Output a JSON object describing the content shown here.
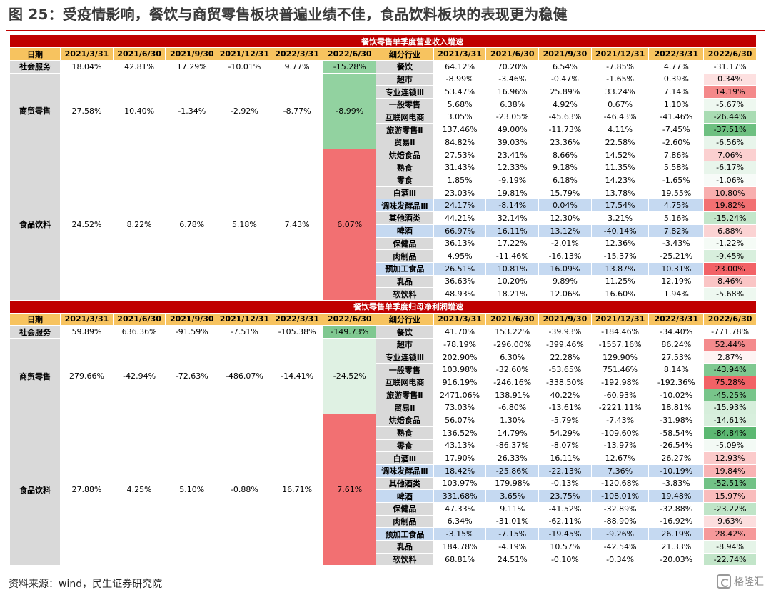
{
  "title": "图 25：受疫情影响，餐饮与商贸零售板块普遍业绩不佳，食品饮料板块的表现更为稳健",
  "source": "资料来源：wind，民生证券研究院",
  "watermark": "格隆汇",
  "colors": {
    "section_bg": "#c00000",
    "header_bg": "#f7c35f",
    "group_bg": "#d9d9d9",
    "highlight_blue": "#c5d9f1"
  },
  "tables": [
    {
      "section_title": "餐饮零售单季度营业收入增速",
      "left_headers": [
        "日期",
        "2021/3/31",
        "2021/6/30",
        "2021/9/30",
        "2021/12/31",
        "2022/3/31",
        "2022/6/30"
      ],
      "right_headers": [
        "细分行业",
        "2021/3/31",
        "2021/6/30",
        "2021/9/30",
        "2021/12/31",
        "2022/3/31",
        "2022/6/30"
      ],
      "groups": [
        {
          "name": "社会服务",
          "values": [
            "18.04%",
            "42.81%",
            "17.29%",
            "-10.01%",
            "9.77%",
            "-15.28%"
          ],
          "last_color": "#92d2a0",
          "rows": 1
        },
        {
          "name": "商贸零售",
          "values": [
            "27.58%",
            "10.40%",
            "-1.34%",
            "-2.92%",
            "-8.77%",
            "-8.99%"
          ],
          "last_color": "#92d2a0",
          "rows": 6
        },
        {
          "name": "食品饮料",
          "values": [
            "24.52%",
            "8.22%",
            "6.78%",
            "5.18%",
            "7.43%",
            "6.07%"
          ],
          "last_color": "#f27072",
          "rows": 12
        }
      ],
      "industries": [
        {
          "name": "餐饮",
          "values": [
            "64.12%",
            "70.20%",
            "6.54%",
            "-7.85%",
            "4.77%",
            "-31.17%"
          ],
          "color": "#ffffff",
          "blue": false
        },
        {
          "name": "超市",
          "values": [
            "-8.99%",
            "-3.46%",
            "-0.47%",
            "-1.65%",
            "0.39%",
            "0.34%"
          ],
          "color": "#fde0e0",
          "blue": false
        },
        {
          "name": "专业连锁Ⅲ",
          "values": [
            "53.47%",
            "16.96%",
            "25.89%",
            "33.24%",
            "7.14%",
            "14.19%"
          ],
          "color": "#f4898a",
          "blue": false
        },
        {
          "name": "一般零售",
          "values": [
            "5.68%",
            "6.38%",
            "4.92%",
            "0.67%",
            "1.10%",
            "-5.67%"
          ],
          "color": "#eef8f0",
          "blue": false
        },
        {
          "name": "互联网电商",
          "values": [
            "3.05%",
            "-23.05%",
            "-45.63%",
            "-46.43%",
            "-41.46%",
            "-26.44%"
          ],
          "color": "#a9dcb3",
          "blue": false
        },
        {
          "name": "旅游零售Ⅱ",
          "values": [
            "137.46%",
            "49.00%",
            "-11.73%",
            "4.11%",
            "-7.45%",
            "-37.51%"
          ],
          "color": "#6ec081",
          "blue": false
        },
        {
          "name": "贸易Ⅱ",
          "values": [
            "84.82%",
            "39.03%",
            "23.36%",
            "22.58%",
            "-2.60%",
            "-6.56%"
          ],
          "color": "#e8f5eb",
          "blue": false
        },
        {
          "name": "烘焙食品",
          "values": [
            "27.53%",
            "23.41%",
            "8.66%",
            "14.52%",
            "7.86%",
            "7.06%"
          ],
          "color": "#fbd0d0",
          "blue": false
        },
        {
          "name": "熟食",
          "values": [
            "31.43%",
            "12.33%",
            "9.18%",
            "11.35%",
            "5.58%",
            "-6.17%"
          ],
          "color": "#e8f5eb",
          "blue": false
        },
        {
          "name": "零食",
          "values": [
            "1.85%",
            "-9.19%",
            "6.18%",
            "14.23%",
            "-1.65%",
            "-1.06%"
          ],
          "color": "#f7fbf8",
          "blue": false
        },
        {
          "name": "白酒Ⅲ",
          "values": [
            "23.03%",
            "19.81%",
            "15.79%",
            "13.78%",
            "19.55%",
            "10.80%"
          ],
          "color": "#f8aeae",
          "blue": false
        },
        {
          "name": "调味发酵品Ⅲ",
          "values": [
            "24.17%",
            "-8.14%",
            "0.04%",
            "17.54%",
            "4.75%",
            "19.82%"
          ],
          "color": "#f27072",
          "blue": true
        },
        {
          "name": "其他酒类",
          "values": [
            "44.21%",
            "32.14%",
            "12.30%",
            "3.21%",
            "5.16%",
            "-15.24%"
          ],
          "color": "#c3e6ca",
          "blue": false
        },
        {
          "name": "啤酒",
          "values": [
            "66.97%",
            "16.11%",
            "13.12%",
            "-40.14%",
            "7.82%",
            "6.88%"
          ],
          "color": "#fbd3d3",
          "blue": true
        },
        {
          "name": "保健品",
          "values": [
            "36.13%",
            "17.22%",
            "-2.01%",
            "12.36%",
            "-3.43%",
            "-1.22%"
          ],
          "color": "#f5fbf6",
          "blue": false
        },
        {
          "name": "肉制品",
          "values": [
            "4.95%",
            "-11.46%",
            "-16.13%",
            "-15.37%",
            "-25.21%",
            "-9.45%"
          ],
          "color": "#d8efdd",
          "blue": false
        },
        {
          "name": "预加工食品",
          "values": [
            "26.51%",
            "10.81%",
            "16.09%",
            "13.87%",
            "10.31%",
            "23.00%"
          ],
          "color": "#f26266",
          "blue": true
        },
        {
          "name": "乳品",
          "values": [
            "36.63%",
            "10.20%",
            "9.89%",
            "11.25%",
            "12.19%",
            "8.46%"
          ],
          "color": "#fac5c5",
          "blue": false
        },
        {
          "name": "软饮料",
          "values": [
            "48.93%",
            "18.21%",
            "12.06%",
            "16.60%",
            "1.94%",
            "-5.68%"
          ],
          "color": "#eef8f0",
          "blue": false
        }
      ]
    },
    {
      "section_title": "餐饮零售单季度归母净利润增速",
      "left_headers": [
        "日期",
        "2021/3/31",
        "2021/6/30",
        "2021/9/30",
        "2021/12/31",
        "2022/3/31",
        "2022/6/30"
      ],
      "right_headers": [
        "细分行业",
        "2021/3/31",
        "2021/6/30",
        "2021/9/30",
        "2021/12/31",
        "2022/3/31",
        "2022/6/30"
      ],
      "groups": [
        {
          "name": "社会服务",
          "values": [
            "59.89%",
            "636.36%",
            "-91.59%",
            "-7.51%",
            "-105.38%",
            "-149.73%"
          ],
          "color_last": "#92d2a0",
          "last_color": "#7fc890",
          "rows": 1
        },
        {
          "name": "商贸零售",
          "values": [
            "279.66%",
            "-42.94%",
            "-72.63%",
            "-486.07%",
            "-14.41%",
            "-24.52%"
          ],
          "last_color": "#dff1e3",
          "rows": 6
        },
        {
          "name": "食品饮料",
          "values": [
            "27.88%",
            "4.25%",
            "5.10%",
            "-0.88%",
            "16.71%",
            "7.61%"
          ],
          "last_color": "#f27072",
          "rows": 12
        }
      ],
      "industries": [
        {
          "name": "餐饮",
          "values": [
            "41.70%",
            "153.22%",
            "-39.93%",
            "-184.46%",
            "-34.40%",
            "-771.78%"
          ],
          "color": "#ffffff",
          "blue": false
        },
        {
          "name": "超市",
          "values": [
            "-78.19%",
            "-296.00%",
            "-399.46%",
            "-1557.16%",
            "86.24%",
            "52.44%"
          ],
          "color": "#f48a8c",
          "blue": false
        },
        {
          "name": "专业连锁Ⅲ",
          "values": [
            "202.90%",
            "6.30%",
            "22.28%",
            "129.90%",
            "27.53%",
            "2.87%"
          ],
          "color": "#fef3f3",
          "blue": false
        },
        {
          "name": "一般零售",
          "values": [
            "103.98%",
            "-32.60%",
            "-53.65%",
            "751.46%",
            "8.14%",
            "-43.94%"
          ],
          "color": "#7fc890",
          "blue": false
        },
        {
          "name": "互联网电商",
          "values": [
            "916.19%",
            "-246.16%",
            "-338.50%",
            "-192.98%",
            "-192.36%",
            "75.28%"
          ],
          "color": "#f26266",
          "blue": false
        },
        {
          "name": "旅游零售Ⅱ",
          "values": [
            "2471.06%",
            "138.91%",
            "40.22%",
            "-60.93%",
            "-10.02%",
            "-45.25%"
          ],
          "color": "#78c58a",
          "blue": false
        },
        {
          "name": "贸易Ⅱ",
          "values": [
            "73.03%",
            "-6.80%",
            "-13.61%",
            "-2221.11%",
            "18.81%",
            "-15.93%"
          ],
          "color": "#d6eedb",
          "blue": false
        },
        {
          "name": "烘焙食品",
          "values": [
            "56.07%",
            "1.30%",
            "-5.79%",
            "-7.43%",
            "-31.98%",
            "-14.61%"
          ],
          "color": "#d8efdd",
          "blue": false
        },
        {
          "name": "熟食",
          "values": [
            "136.52%",
            "14.79%",
            "54.29%",
            "-109.60%",
            "-58.54%",
            "-84.84%"
          ],
          "color": "#5cb872",
          "blue": false
        },
        {
          "name": "零食",
          "values": [
            "43.13%",
            "-86.37%",
            "-8.07%",
            "-13.97%",
            "-26.54%",
            "-5.09%"
          ],
          "color": "#f3faf5",
          "blue": false
        },
        {
          "name": "白酒Ⅲ",
          "values": [
            "17.90%",
            "26.33%",
            "16.11%",
            "12.67%",
            "26.27%",
            "12.93%"
          ],
          "color": "#fbcaca",
          "blue": false
        },
        {
          "name": "调味发酵品Ⅲ",
          "values": [
            "18.42%",
            "-25.86%",
            "-22.13%",
            "7.36%",
            "-10.19%",
            "19.84%"
          ],
          "color": "#f9b3b4",
          "blue": true
        },
        {
          "name": "其他酒类",
          "values": [
            "103.97%",
            "179.98%",
            "-0.13%",
            "-120.68%",
            "-3.83%",
            "-52.51%"
          ],
          "color": "#72c286",
          "blue": false
        },
        {
          "name": "啤酒",
          "values": [
            "331.68%",
            "3.65%",
            "23.75%",
            "-108.01%",
            "19.48%",
            "15.97%"
          ],
          "color": "#f9bcbc",
          "blue": true
        },
        {
          "name": "保健品",
          "values": [
            "47.33%",
            "9.11%",
            "-41.52%",
            "-32.89%",
            "-32.88%",
            "-23.22%"
          ],
          "color": "#bfe4c7",
          "blue": false
        },
        {
          "name": "肉制品",
          "values": [
            "6.34%",
            "-31.01%",
            "-62.11%",
            "-88.90%",
            "-16.92%",
            "9.63%"
          ],
          "color": "#fcdede",
          "blue": false
        },
        {
          "name": "预加工食品",
          "values": [
            "-3.15%",
            "-7.15%",
            "-19.45%",
            "-9.26%",
            "26.19%",
            "28.42%"
          ],
          "color": "#f6999a",
          "blue": true
        },
        {
          "name": "乳品",
          "values": [
            "184.78%",
            "-4.19%",
            "10.57%",
            "-42.54%",
            "21.33%",
            "-8.94%"
          ],
          "color": "#e5f4e8",
          "blue": false
        },
        {
          "name": "软饮料",
          "values": [
            "68.81%",
            "24.51%",
            "-0.10%",
            "-0.34%",
            "-20.03%",
            "-22.74%"
          ],
          "color": "#c2e5c9",
          "blue": false
        }
      ]
    }
  ]
}
